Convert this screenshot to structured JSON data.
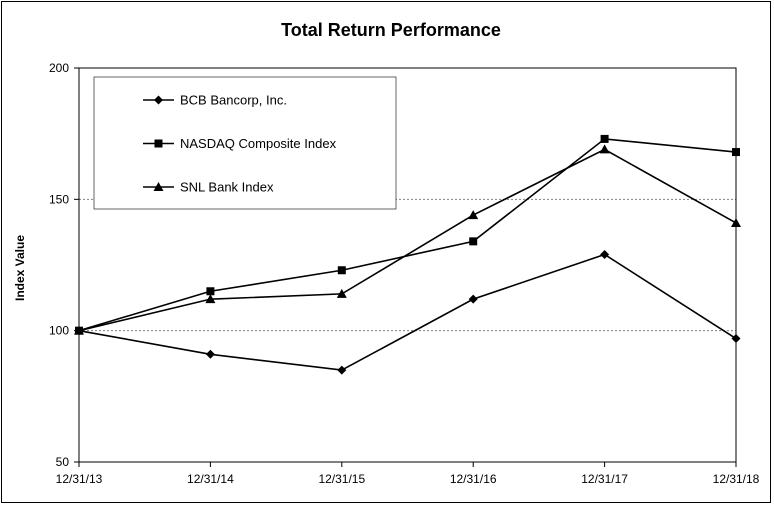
{
  "chart_data": {
    "type": "line",
    "title": "Total Return Performance",
    "xlabel": "",
    "ylabel": "Index Value",
    "categories": [
      "12/31/13",
      "12/31/14",
      "12/31/15",
      "12/31/16",
      "12/31/17",
      "12/31/18"
    ],
    "ylim": [
      50,
      200
    ],
    "yticks": [
      50,
      100,
      150,
      200
    ],
    "grid": "horizontal-dashed",
    "legend": "top-left",
    "series": [
      {
        "name": "BCB Bancorp, Inc.",
        "marker": "diamond",
        "color": "#000000",
        "values": [
          100,
          91,
          85,
          112,
          129,
          97
        ]
      },
      {
        "name": "NASDAQ Composite Index",
        "marker": "square",
        "color": "#000000",
        "values": [
          100,
          115,
          123,
          134,
          173,
          168
        ]
      },
      {
        "name": "SNL Bank Index",
        "marker": "triangle",
        "color": "#000000",
        "values": [
          100,
          112,
          114,
          144,
          169,
          141
        ]
      }
    ]
  }
}
